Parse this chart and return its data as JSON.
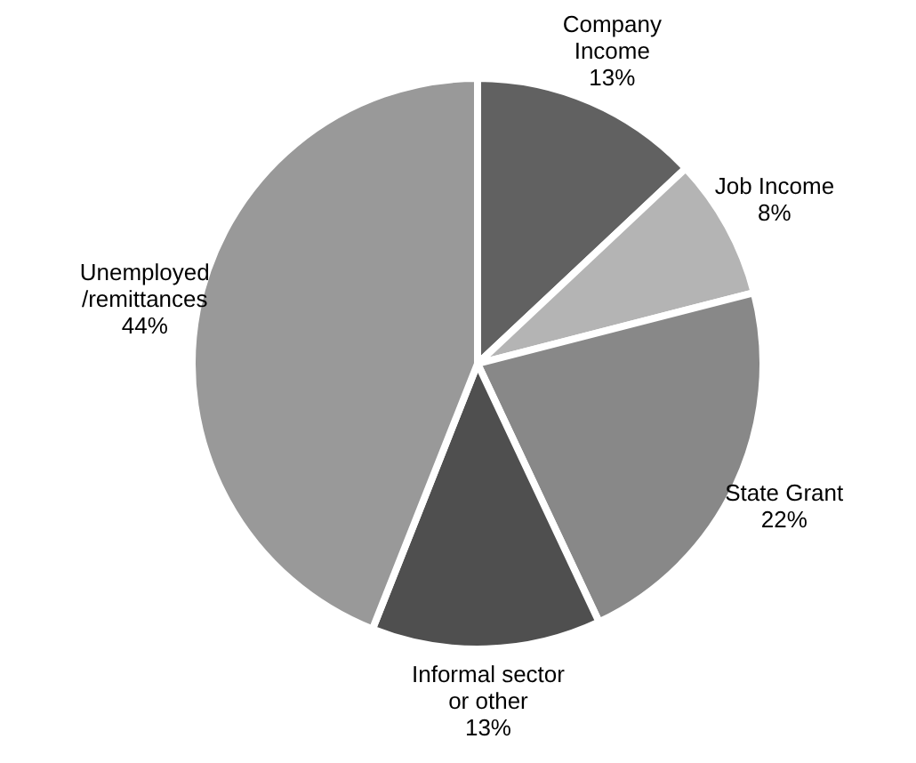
{
  "chart_data": {
    "type": "pie",
    "categories": [
      "Company\nIncome\n13%",
      "Job Income\n8%",
      "State Grant\n22%",
      "Informal sector\nor other\n13%",
      "Unemployed\n/remittances\n44%"
    ],
    "values": [
      13,
      8,
      22,
      13,
      44
    ],
    "colors": [
      "#616161",
      "#b4b4b4",
      "#888888",
      "#4f4f4f",
      "#999999"
    ],
    "legend": false
  }
}
